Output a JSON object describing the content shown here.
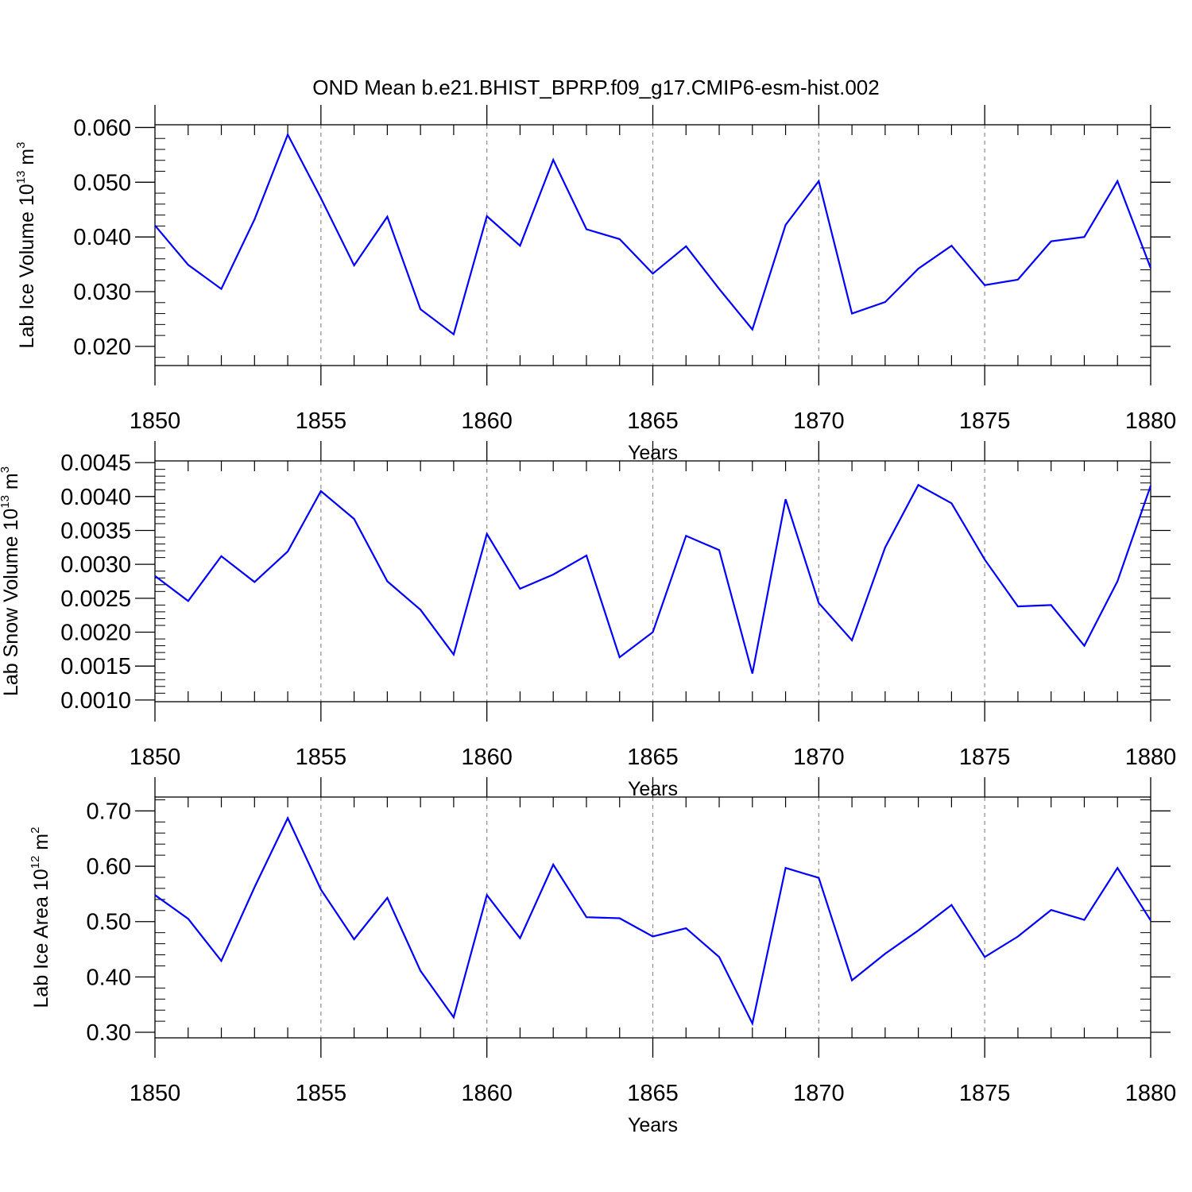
{
  "title": "OND Mean b.e21.BHIST_BPRP.f09_g17.CMIP6-esm-hist.002",
  "colors": {
    "line": "#0000ff",
    "axis": "#000000",
    "grid": "#8c8c8c"
  },
  "chart_data": [
    {
      "type": "line",
      "name": "ice-volume",
      "xlabel": "Years",
      "ylabel_parts": {
        "text": "Lab Ice Volume 10",
        "exp": "13",
        "unit": " m",
        "unit_exp": "3"
      },
      "xlim": [
        1850,
        1880
      ],
      "ylim": [
        0.0165,
        0.0605
      ],
      "xticks": [
        1850,
        1855,
        1860,
        1865,
        1870,
        1875,
        1880
      ],
      "xtick_labels": [
        "1850",
        "1855",
        "1860",
        "1865",
        "1870",
        "1875",
        "1880"
      ],
      "yticks": [
        0.02,
        0.03,
        0.04,
        0.05,
        0.06
      ],
      "ytick_labels": [
        "0.020",
        "0.030",
        "0.040",
        "0.050",
        "0.060"
      ],
      "x": [
        1850,
        1851,
        1852,
        1853,
        1854,
        1855,
        1856,
        1857,
        1858,
        1859,
        1860,
        1861,
        1862,
        1863,
        1864,
        1865,
        1866,
        1867,
        1868,
        1869,
        1870,
        1871,
        1872,
        1873,
        1874,
        1875,
        1876,
        1877,
        1878,
        1879,
        1880
      ],
      "series": [
        {
          "name": "Lab Ice Volume",
          "values": [
            0.0421,
            0.0349,
            0.0305,
            0.0432,
            0.0587,
            0.0471,
            0.0348,
            0.0437,
            0.0268,
            0.0222,
            0.0438,
            0.0384,
            0.0541,
            0.0414,
            0.0396,
            0.0333,
            0.0383,
            0.0305,
            0.0231,
            0.0422,
            0.0502,
            0.026,
            0.0281,
            0.0342,
            0.0384,
            0.0312,
            0.0322,
            0.0392,
            0.04,
            0.0502,
            0.0343
          ]
        }
      ]
    },
    {
      "type": "line",
      "name": "snow-volume",
      "xlabel": "Years",
      "ylabel_parts": {
        "text": "Lab Snow Volume 10",
        "exp": "13",
        "unit": " m",
        "unit_exp": "3"
      },
      "xlim": [
        1850,
        1880
      ],
      "ylim": [
        0.000975,
        0.004525
      ],
      "xticks": [
        1850,
        1855,
        1860,
        1865,
        1870,
        1875,
        1880
      ],
      "xtick_labels": [
        "1850",
        "1855",
        "1860",
        "1865",
        "1870",
        "1875",
        "1880"
      ],
      "yticks": [
        0.001,
        0.0015,
        0.002,
        0.0025,
        0.003,
        0.0035,
        0.004,
        0.0045
      ],
      "ytick_labels": [
        "0.0010",
        "0.0015",
        "0.0020",
        "0.0025",
        "0.0030",
        "0.0035",
        "0.0040",
        "0.0045"
      ],
      "x": [
        1850,
        1851,
        1852,
        1853,
        1854,
        1855,
        1856,
        1857,
        1858,
        1859,
        1860,
        1861,
        1862,
        1863,
        1864,
        1865,
        1866,
        1867,
        1868,
        1869,
        1870,
        1871,
        1872,
        1873,
        1874,
        1875,
        1876,
        1877,
        1878,
        1879,
        1880
      ],
      "series": [
        {
          "name": "Lab Snow Volume",
          "values": [
            0.00283,
            0.00246,
            0.00312,
            0.00274,
            0.00319,
            0.00408,
            0.00367,
            0.00275,
            0.00233,
            0.00167,
            0.00345,
            0.00264,
            0.00285,
            0.00313,
            0.00163,
            0.002,
            0.00342,
            0.00321,
            0.00139,
            0.00396,
            0.00243,
            0.00188,
            0.00325,
            0.00417,
            0.0039,
            0.00307,
            0.00238,
            0.0024,
            0.0018,
            0.00275,
            0.00416
          ]
        }
      ]
    },
    {
      "type": "line",
      "name": "ice-area",
      "xlabel": "Years",
      "ylabel_parts": {
        "text": "Lab Ice Area 10",
        "exp": "12",
        "unit": " m",
        "unit_exp": "2"
      },
      "xlim": [
        1850,
        1880
      ],
      "ylim": [
        0.29,
        0.725
      ],
      "xticks": [
        1850,
        1855,
        1860,
        1865,
        1870,
        1875,
        1880
      ],
      "xtick_labels": [
        "1850",
        "1855",
        "1860",
        "1865",
        "1870",
        "1875",
        "1880"
      ],
      "yticks": [
        0.3,
        0.4,
        0.5,
        0.6,
        0.7
      ],
      "ytick_labels": [
        "0.30",
        "0.40",
        "0.50",
        "0.60",
        "0.70"
      ],
      "x": [
        1850,
        1851,
        1852,
        1853,
        1854,
        1855,
        1856,
        1857,
        1858,
        1859,
        1860,
        1861,
        1862,
        1863,
        1864,
        1865,
        1866,
        1867,
        1868,
        1869,
        1870,
        1871,
        1872,
        1873,
        1874,
        1875,
        1876,
        1877,
        1878,
        1879,
        1880
      ],
      "series": [
        {
          "name": "Lab Ice Area",
          "values": [
            0.548,
            0.505,
            0.429,
            0.562,
            0.687,
            0.558,
            0.468,
            0.543,
            0.411,
            0.327,
            0.548,
            0.47,
            0.603,
            0.508,
            0.506,
            0.473,
            0.488,
            0.436,
            0.316,
            0.597,
            0.579,
            0.394,
            0.442,
            0.484,
            0.53,
            0.436,
            0.473,
            0.521,
            0.503,
            0.597,
            0.502
          ]
        }
      ]
    }
  ]
}
